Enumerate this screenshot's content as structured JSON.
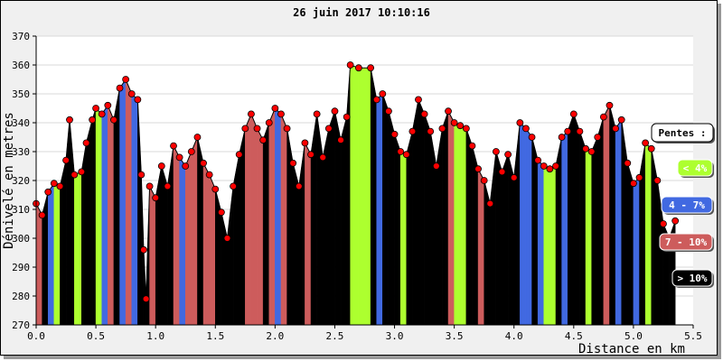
{
  "chart_data": {
    "type": "area",
    "title": "26 juin 2017 10:10:16",
    "xlabel": "Distance en km",
    "ylabel": "Dénivelé en metres",
    "xlim": [
      0,
      5.5
    ],
    "ylim": [
      270,
      370
    ],
    "x_ticks": [
      "0.0",
      "0.5",
      "1.0",
      "1.5",
      "2.0",
      "2.5",
      "3.0",
      "3.5",
      "4.0",
      "4.5",
      "5.0",
      "5.5"
    ],
    "y_ticks": [
      "270",
      "280",
      "290",
      "300",
      "310",
      "320",
      "330",
      "340",
      "350",
      "360",
      "370"
    ],
    "grid": true,
    "legend_position": "right",
    "legend": {
      "title": "Pentes :",
      "items": [
        {
          "label": "< 4%",
          "color": "#adff2f"
        },
        {
          "label": "4 - 7%",
          "color": "#4169e1"
        },
        {
          "label": "7 - 10%",
          "color": "#cd5c5c"
        },
        {
          "label": "> 10%",
          "color": "#000000"
        }
      ]
    },
    "marker_color": "#ff0000",
    "profile": [
      [
        0.0,
        312
      ],
      [
        0.05,
        308
      ],
      [
        0.1,
        316
      ],
      [
        0.15,
        319
      ],
      [
        0.2,
        318
      ],
      [
        0.25,
        327
      ],
      [
        0.28,
        341
      ],
      [
        0.32,
        322
      ],
      [
        0.38,
        323
      ],
      [
        0.42,
        333
      ],
      [
        0.47,
        341
      ],
      [
        0.5,
        345
      ],
      [
        0.55,
        343
      ],
      [
        0.6,
        346
      ],
      [
        0.65,
        341
      ],
      [
        0.7,
        352
      ],
      [
        0.75,
        355
      ],
      [
        0.8,
        350
      ],
      [
        0.85,
        348
      ],
      [
        0.88,
        322
      ],
      [
        0.9,
        296
      ],
      [
        0.92,
        279
      ],
      [
        0.95,
        318
      ],
      [
        1.0,
        314
      ],
      [
        1.05,
        325
      ],
      [
        1.1,
        318
      ],
      [
        1.15,
        332
      ],
      [
        1.2,
        328
      ],
      [
        1.25,
        325
      ],
      [
        1.3,
        330
      ],
      [
        1.35,
        335
      ],
      [
        1.4,
        326
      ],
      [
        1.45,
        322
      ],
      [
        1.5,
        317
      ],
      [
        1.55,
        309
      ],
      [
        1.6,
        300
      ],
      [
        1.65,
        318
      ],
      [
        1.7,
        329
      ],
      [
        1.75,
        338
      ],
      [
        1.8,
        343
      ],
      [
        1.85,
        338
      ],
      [
        1.9,
        334
      ],
      [
        1.95,
        340
      ],
      [
        2.0,
        345
      ],
      [
        2.05,
        343
      ],
      [
        2.1,
        338
      ],
      [
        2.15,
        326
      ],
      [
        2.2,
        318
      ],
      [
        2.25,
        333
      ],
      [
        2.3,
        329
      ],
      [
        2.35,
        343
      ],
      [
        2.4,
        328
      ],
      [
        2.45,
        338
      ],
      [
        2.5,
        344
      ],
      [
        2.55,
        334
      ],
      [
        2.6,
        342
      ],
      [
        2.63,
        360
      ],
      [
        2.7,
        359
      ],
      [
        2.8,
        359
      ],
      [
        2.85,
        348
      ],
      [
        2.9,
        350
      ],
      [
        2.95,
        344
      ],
      [
        3.0,
        336
      ],
      [
        3.05,
        330
      ],
      [
        3.1,
        329
      ],
      [
        3.15,
        337
      ],
      [
        3.2,
        348
      ],
      [
        3.25,
        343
      ],
      [
        3.3,
        337
      ],
      [
        3.35,
        325
      ],
      [
        3.4,
        338
      ],
      [
        3.45,
        344
      ],
      [
        3.5,
        340
      ],
      [
        3.55,
        339
      ],
      [
        3.6,
        338
      ],
      [
        3.65,
        332
      ],
      [
        3.7,
        324
      ],
      [
        3.75,
        320
      ],
      [
        3.8,
        312
      ],
      [
        3.85,
        330
      ],
      [
        3.9,
        323
      ],
      [
        3.95,
        329
      ],
      [
        4.0,
        321
      ],
      [
        4.05,
        340
      ],
      [
        4.1,
        338
      ],
      [
        4.15,
        335
      ],
      [
        4.2,
        327
      ],
      [
        4.25,
        325
      ],
      [
        4.3,
        324
      ],
      [
        4.35,
        325
      ],
      [
        4.4,
        335
      ],
      [
        4.45,
        337
      ],
      [
        4.5,
        343
      ],
      [
        4.55,
        337
      ],
      [
        4.6,
        331
      ],
      [
        4.65,
        330
      ],
      [
        4.7,
        335
      ],
      [
        4.75,
        342
      ],
      [
        4.8,
        346
      ],
      [
        4.85,
        338
      ],
      [
        4.9,
        341
      ],
      [
        4.95,
        326
      ],
      [
        5.0,
        319
      ],
      [
        5.05,
        321
      ],
      [
        5.1,
        333
      ],
      [
        5.15,
        331
      ],
      [
        5.2,
        320
      ],
      [
        5.25,
        305
      ],
      [
        5.3,
        300
      ],
      [
        5.35,
        306
      ]
    ]
  }
}
